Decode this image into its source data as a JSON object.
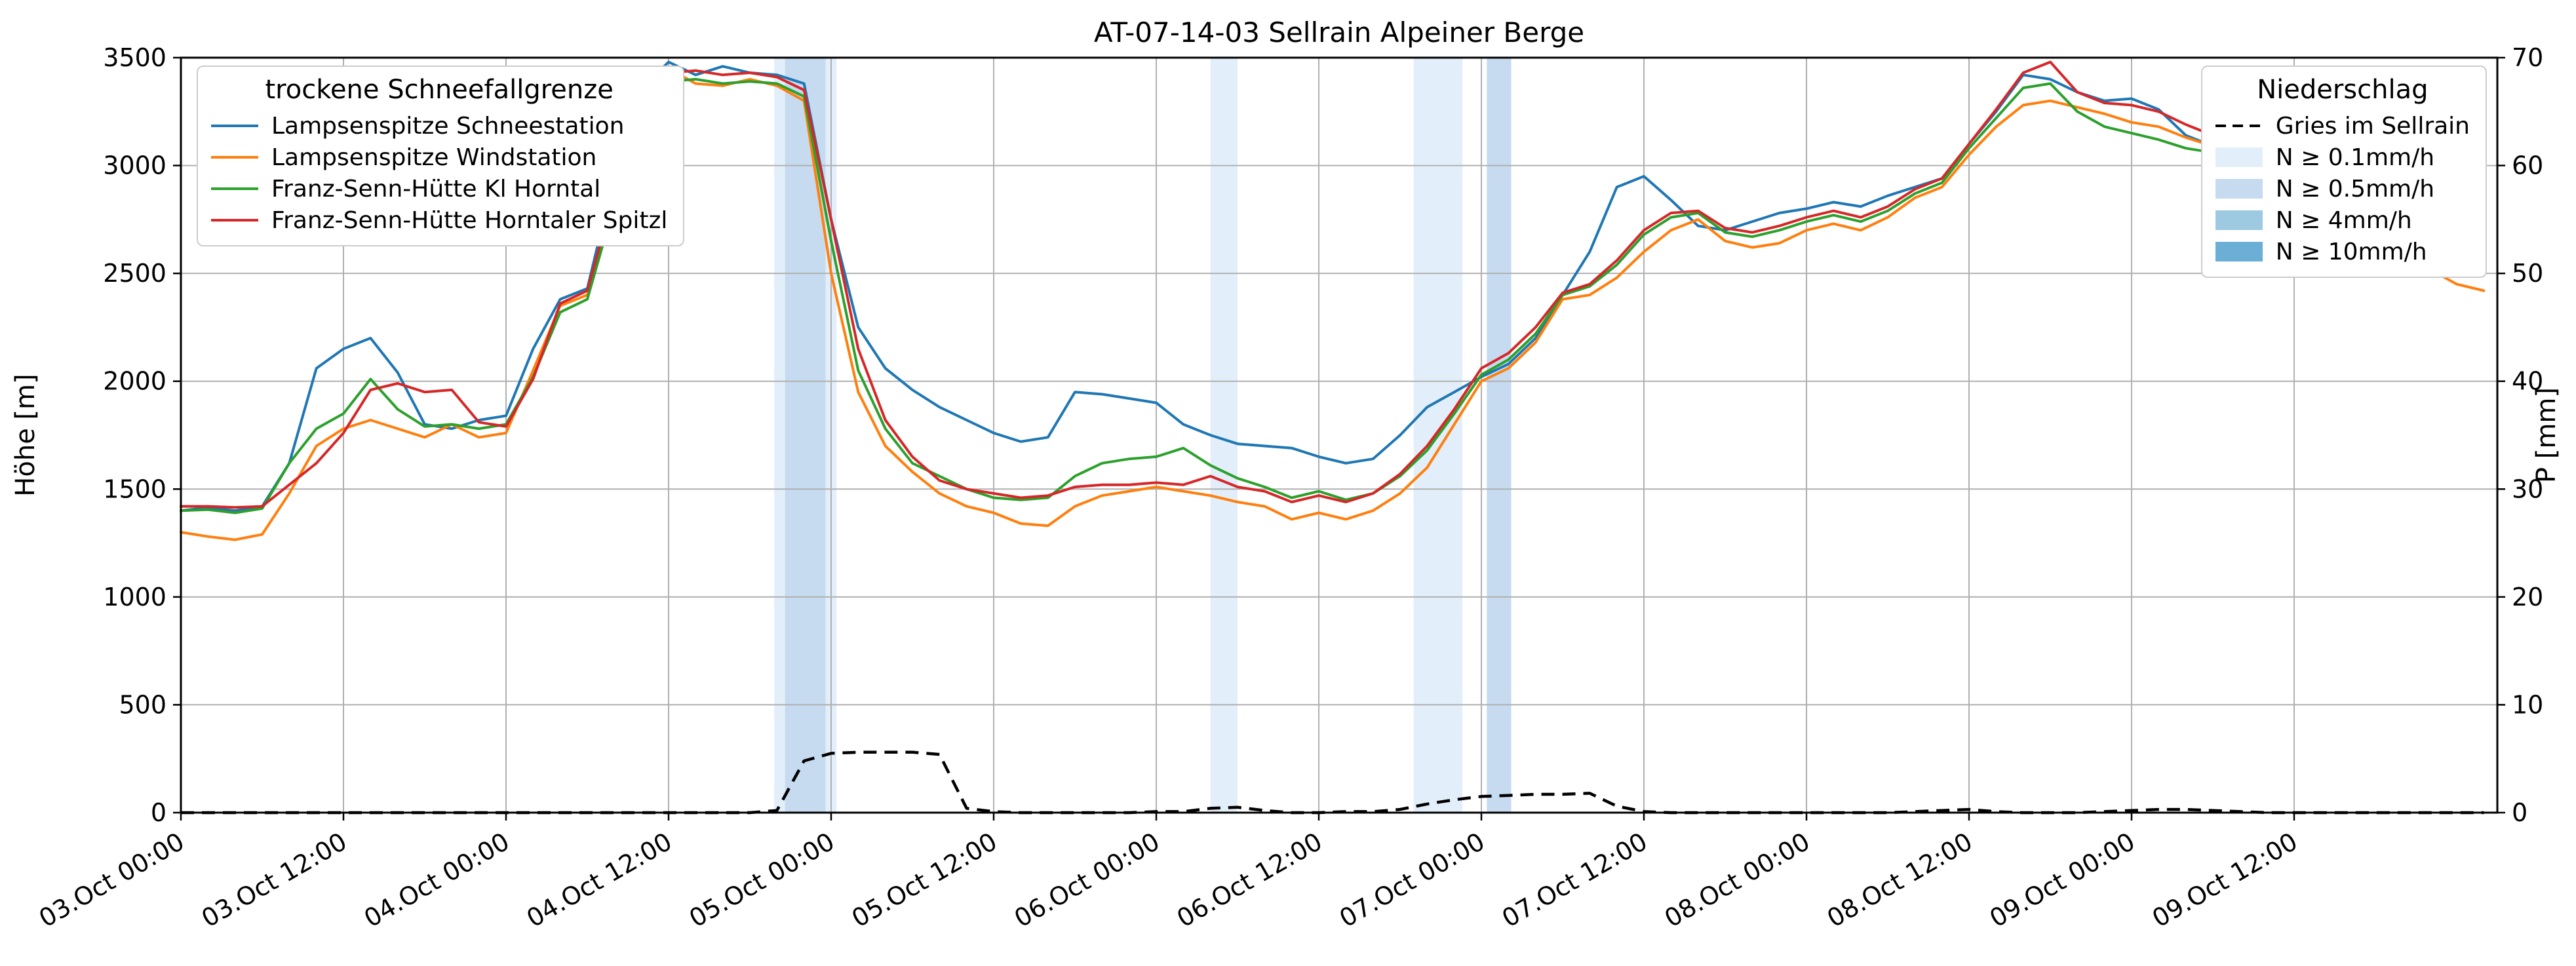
{
  "chart_data": {
    "type": "line",
    "title": "AT-07-14-03 Sellrain Alpeiner Berge",
    "ylabel_left": "Höhe [m]",
    "ylabel_right": "P [mm]",
    "ylim_left": [
      0,
      3500
    ],
    "ylim_right": [
      0,
      70
    ],
    "yticks_left": [
      0,
      500,
      1000,
      1500,
      2000,
      2500,
      3000,
      3500
    ],
    "yticks_right": [
      0,
      10,
      20,
      30,
      40,
      50,
      60,
      70
    ],
    "grid_color": "#b0b0b0",
    "x_step_hours": 2,
    "x_domain_hours": [
      0,
      171
    ],
    "x_ticks": [
      {
        "h": 0,
        "label": "03.Oct 00:00"
      },
      {
        "h": 12,
        "label": "03.Oct 12:00"
      },
      {
        "h": 24,
        "label": "04.Oct 00:00"
      },
      {
        "h": 36,
        "label": "04.Oct 12:00"
      },
      {
        "h": 48,
        "label": "05.Oct 00:00"
      },
      {
        "h": 60,
        "label": "05.Oct 12:00"
      },
      {
        "h": 72,
        "label": "06.Oct 00:00"
      },
      {
        "h": 84,
        "label": "06.Oct 12:00"
      },
      {
        "h": 96,
        "label": "07.Oct 00:00"
      },
      {
        "h": 108,
        "label": "07.Oct 12:00"
      },
      {
        "h": 120,
        "label": "08.Oct 00:00"
      },
      {
        "h": 132,
        "label": "08.Oct 12:00"
      },
      {
        "h": 144,
        "label": "09.Oct 00:00"
      },
      {
        "h": 156,
        "label": "09.Oct 12:00"
      }
    ],
    "legend_left_title": "trockene Schneefallgrenze",
    "legend_right_title": "Niederschlag",
    "series": [
      {
        "name": "Lampsenspitze Schneestation",
        "color": "#1f77b4",
        "values": [
          1400,
          1415,
          1400,
          1420,
          1620,
          2060,
          2150,
          2200,
          2040,
          1800,
          1780,
          1820,
          1840,
          2150,
          2380,
          2430,
          2950,
          3360,
          3480,
          3420,
          3460,
          3430,
          3420,
          3380,
          2750,
          2250,
          2060,
          1960,
          1880,
          1820,
          1760,
          1720,
          1740,
          1950,
          1940,
          1920,
          1900,
          1800,
          1750,
          1710,
          1700,
          1690,
          1650,
          1620,
          1640,
          1750,
          1880,
          1950,
          2020,
          2080,
          2200,
          2400,
          2600,
          2900,
          2950,
          2840,
          2720,
          2700,
          2740,
          2780,
          2800,
          2830,
          2810,
          2860,
          2900,
          2940,
          3100,
          3250,
          3420,
          3400,
          3340,
          3300,
          3310,
          3260,
          3140,
          3090,
          3070,
          3040,
          3020,
          3000,
          2990,
          2920,
          2750,
          2600,
          2530,
          2500
        ]
      },
      {
        "name": "Lampsenspitze Windstation",
        "color": "#ff7f0e",
        "values": [
          1300,
          1280,
          1265,
          1290,
          1480,
          1700,
          1780,
          1820,
          1780,
          1740,
          1800,
          1740,
          1760,
          2050,
          2350,
          2400,
          2850,
          3320,
          3450,
          3380,
          3370,
          3400,
          3370,
          3300,
          2500,
          1950,
          1700,
          1580,
          1480,
          1420,
          1390,
          1340,
          1330,
          1420,
          1470,
          1490,
          1510,
          1490,
          1470,
          1440,
          1420,
          1360,
          1390,
          1360,
          1400,
          1480,
          1600,
          1800,
          2000,
          2060,
          2180,
          2380,
          2400,
          2480,
          2600,
          2700,
          2750,
          2650,
          2620,
          2640,
          2700,
          2730,
          2700,
          2760,
          2850,
          2900,
          3050,
          3180,
          3280,
          3300,
          3270,
          3240,
          3200,
          3180,
          3130,
          3090,
          3060,
          3040,
          3030,
          3010,
          2990,
          2940,
          2720,
          2520,
          2450,
          2420
        ]
      },
      {
        "name": "Franz-Senn-Hütte Kl Horntal",
        "color": "#2ca02c",
        "values": [
          1400,
          1405,
          1390,
          1410,
          1620,
          1780,
          1850,
          2010,
          1870,
          1790,
          1800,
          1780,
          1800,
          2020,
          2320,
          2380,
          2820,
          3250,
          3390,
          3400,
          3380,
          3390,
          3380,
          3320,
          2650,
          2050,
          1780,
          1620,
          1560,
          1500,
          1460,
          1450,
          1460,
          1560,
          1620,
          1640,
          1650,
          1690,
          1610,
          1550,
          1510,
          1460,
          1490,
          1450,
          1480,
          1560,
          1680,
          1850,
          2030,
          2100,
          2220,
          2400,
          2440,
          2540,
          2680,
          2760,
          2780,
          2690,
          2670,
          2700,
          2740,
          2770,
          2740,
          2790,
          2870,
          2920,
          3080,
          3220,
          3360,
          3380,
          3250,
          3180,
          3150,
          3120,
          3080,
          3060,
          3040,
          3020,
          3010,
          3000,
          2980,
          2920,
          2780,
          2620,
          2560,
          2520
        ]
      },
      {
        "name": "Franz-Senn-Hütte Horntaler Spitzl",
        "color": "#d62728",
        "values": [
          1420,
          1420,
          1415,
          1420,
          1520,
          1620,
          1760,
          1960,
          1990,
          1950,
          1960,
          1810,
          1790,
          2010,
          2360,
          2420,
          2870,
          3280,
          3430,
          3440,
          3420,
          3430,
          3410,
          3350,
          2750,
          2150,
          1820,
          1650,
          1540,
          1500,
          1480,
          1460,
          1470,
          1510,
          1520,
          1520,
          1530,
          1520,
          1560,
          1510,
          1490,
          1440,
          1470,
          1440,
          1480,
          1570,
          1700,
          1870,
          2060,
          2130,
          2250,
          2410,
          2450,
          2560,
          2700,
          2780,
          2790,
          2710,
          2690,
          2720,
          2760,
          2790,
          2760,
          2810,
          2890,
          2940,
          3100,
          3260,
          3430,
          3480,
          3340,
          3290,
          3280,
          3250,
          3190,
          3140,
          3110,
          3090,
          3060,
          3040,
          3010,
          2960,
          2830,
          2680,
          2620,
          2580
        ]
      }
    ],
    "precip_line": {
      "name": "Gries im Sellrain",
      "color": "#000000",
      "style": "dashed",
      "unit": "mm",
      "values": [
        0,
        0,
        0,
        0,
        0,
        0,
        0,
        0,
        0,
        0,
        0,
        0,
        0,
        0,
        0,
        0,
        0,
        0,
        0,
        0,
        0,
        0,
        0.2,
        4.8,
        5.5,
        5.6,
        5.6,
        5.6,
        5.4,
        0.4,
        0.1,
        0,
        0,
        0,
        0,
        0,
        0.1,
        0.1,
        0.4,
        0.5,
        0.2,
        0,
        0,
        0.1,
        0.1,
        0.3,
        0.8,
        1.2,
        1.5,
        1.6,
        1.7,
        1.7,
        1.8,
        0.6,
        0.1,
        0,
        0,
        0,
        0,
        0,
        0,
        0,
        0,
        0,
        0.1,
        0.2,
        0.3,
        0.1,
        0,
        0,
        0,
        0.1,
        0.2,
        0.3,
        0.3,
        0.2,
        0.1,
        0,
        0,
        0,
        0,
        0,
        0,
        0,
        0,
        0
      ]
    },
    "precip_band_levels": [
      {
        "label": "N ≥ 0.1mm/h",
        "color": "#e2eef9"
      },
      {
        "label": "N ≥ 0.5mm/h",
        "color": "#c6dbef"
      },
      {
        "label": "N ≥ 4mm/h",
        "color": "#9ecae1"
      },
      {
        "label": "N ≥ 10mm/h",
        "color": "#6baed6"
      }
    ],
    "precip_bands": [
      {
        "from_h": 43.8,
        "to_h": 44.6,
        "level": 0
      },
      {
        "from_h": 44.6,
        "to_h": 47.6,
        "level": 1
      },
      {
        "from_h": 47.6,
        "to_h": 48.4,
        "level": 0
      },
      {
        "from_h": 76.0,
        "to_h": 78.0,
        "level": 0
      },
      {
        "from_h": 91.0,
        "to_h": 94.6,
        "level": 0
      },
      {
        "from_h": 96.4,
        "to_h": 98.2,
        "level": 1
      }
    ]
  }
}
